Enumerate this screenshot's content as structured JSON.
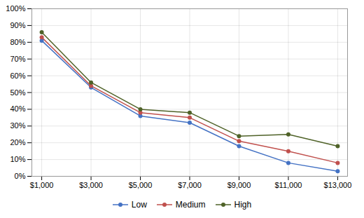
{
  "chart_data": {
    "type": "line",
    "x": [
      1000,
      3000,
      5000,
      7000,
      9000,
      11000,
      13000
    ],
    "xlim": [
      600,
      13400
    ],
    "xticks": [
      {
        "value": 1000,
        "label": "$1,000"
      },
      {
        "value": 3000,
        "label": "$3,000"
      },
      {
        "value": 5000,
        "label": "$5,000"
      },
      {
        "value": 7000,
        "label": "$7,000"
      },
      {
        "value": 9000,
        "label": "$9,000"
      },
      {
        "value": 11000,
        "label": "$11,000"
      },
      {
        "value": 13000,
        "label": "$13,000"
      }
    ],
    "ylim": [
      0,
      1.0
    ],
    "yticks": [
      {
        "value": 0.0,
        "label": "0%"
      },
      {
        "value": 0.1,
        "label": "10%"
      },
      {
        "value": 0.2,
        "label": "20%"
      },
      {
        "value": 0.3,
        "label": "30%"
      },
      {
        "value": 0.4,
        "label": "40%"
      },
      {
        "value": 0.5,
        "label": "50%"
      },
      {
        "value": 0.6,
        "label": "60%"
      },
      {
        "value": 0.7,
        "label": "70%"
      },
      {
        "value": 0.8,
        "label": "80%"
      },
      {
        "value": 0.9,
        "label": "90%"
      },
      {
        "value": 1.0,
        "label": "100%"
      }
    ],
    "series": [
      {
        "name": "Low",
        "color": "#4472C4",
        "marker": "circle",
        "values": [
          0.81,
          0.53,
          0.36,
          0.32,
          0.18,
          0.08,
          0.03
        ]
      },
      {
        "name": "Medium",
        "color": "#C0504D",
        "marker": "circle",
        "values": [
          0.83,
          0.54,
          0.38,
          0.35,
          0.21,
          0.15,
          0.08
        ]
      },
      {
        "name": "High",
        "color": "#4F6228",
        "marker": "circle",
        "values": [
          0.86,
          0.56,
          0.4,
          0.38,
          0.24,
          0.25,
          0.18
        ]
      }
    ],
    "grid": true,
    "legend": "bottom"
  }
}
